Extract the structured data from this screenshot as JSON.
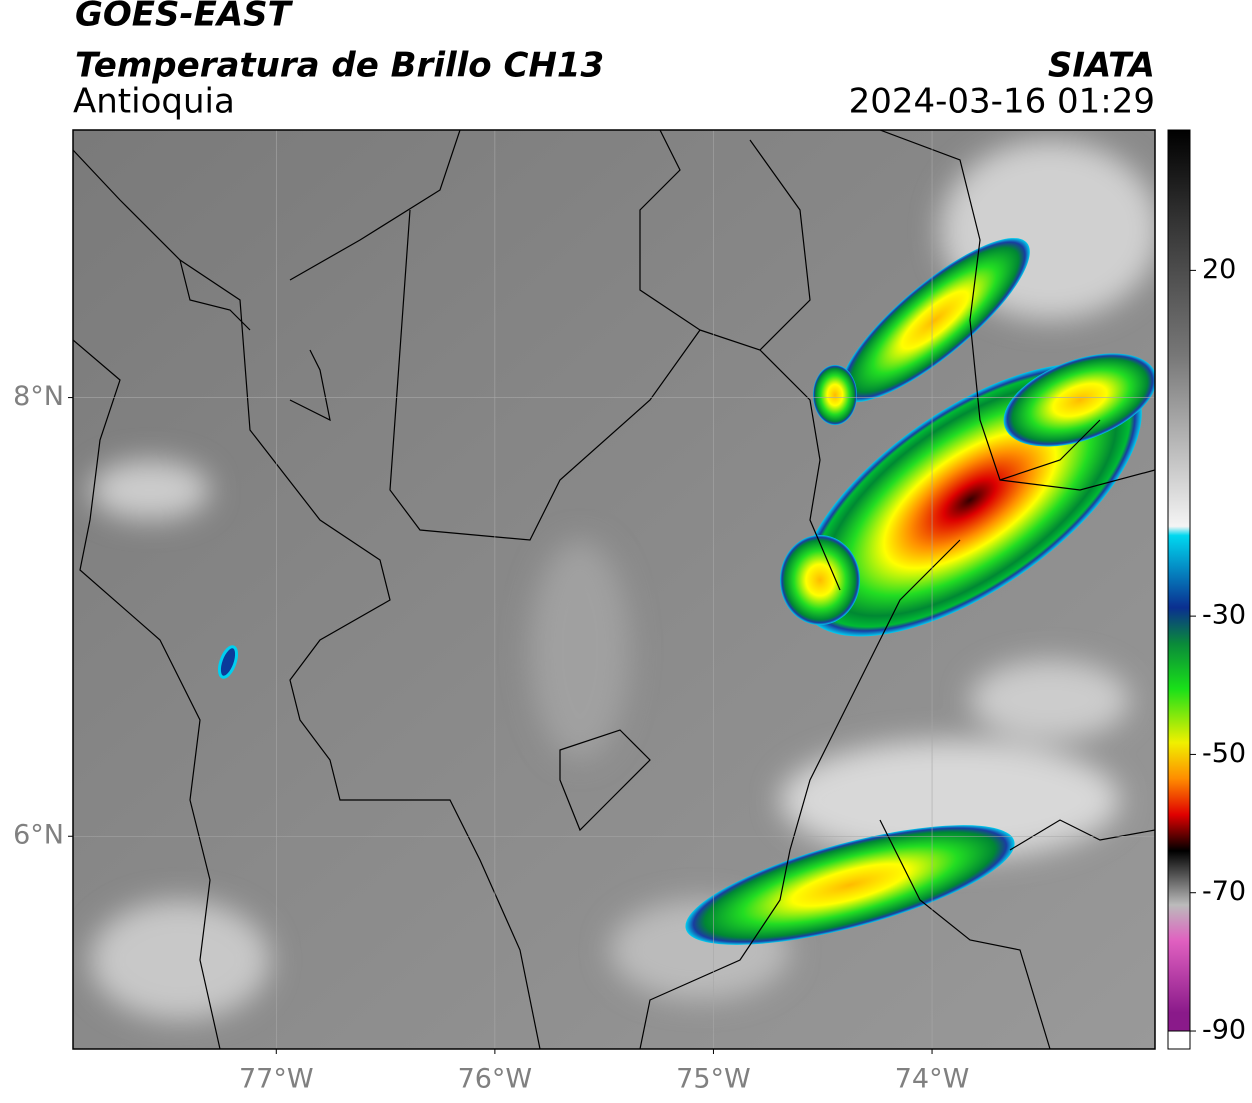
{
  "header": {
    "title": "GOES-EAST",
    "subtitle": "Temperatura de Brillo CH13",
    "region": "Antioquia",
    "source": "SIATA",
    "datetime": "2024-03-16 01:29"
  },
  "map": {
    "xlim": [
      -77.93,
      -72.98
    ],
    "ylim": [
      5.03,
      9.22
    ],
    "xticks": [
      {
        "value": -77,
        "label": "77°W"
      },
      {
        "value": -76,
        "label": "76°W"
      },
      {
        "value": -75,
        "label": "75°W"
      },
      {
        "value": -74,
        "label": "74°W"
      }
    ],
    "yticks": [
      {
        "value": 6,
        "label": "6°N"
      },
      {
        "value": 8,
        "label": "8°N"
      }
    ]
  },
  "colorbar": {
    "lim": [
      -92.6,
      40.3
    ],
    "ticks": [
      20,
      -30,
      -50,
      -70,
      -90
    ]
  }
}
